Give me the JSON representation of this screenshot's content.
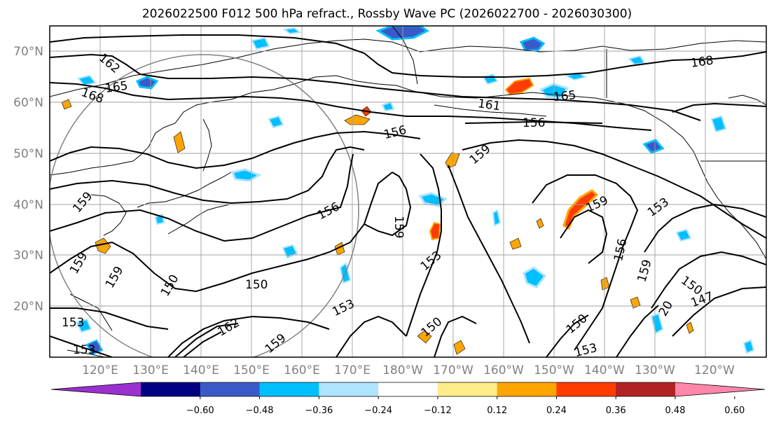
{
  "title": "2026022500 F012 500 hPa refract., Rossby Wave PC (2026022700 - 2026030300)",
  "map": {
    "lat_labels": [
      "70°N",
      "60°N",
      "50°N",
      "40°N",
      "30°N",
      "20°N"
    ],
    "lon_labels": [
      "120°E",
      "130°E",
      "140°E",
      "150°E",
      "160°E",
      "170°E",
      "180°W",
      "170°W",
      "160°W",
      "150°W",
      "140°W",
      "130°W",
      "120°W"
    ],
    "contour_labels": [
      "162",
      "165",
      "168",
      "161",
      "165",
      "156",
      "156",
      "159",
      "156",
      "159",
      "159",
      "153",
      "150",
      "150",
      "153",
      "159",
      "159",
      "153",
      "156",
      "153",
      "159",
      "150",
      "147",
      "150",
      "162",
      "159",
      "153",
      "150",
      "153",
      "168",
      "159",
      "20"
    ]
  },
  "colorbar": {
    "colors": [
      "#9b30d0",
      "#000080",
      "#3a5ac8",
      "#00bfff",
      "#aee4ff",
      "#ffffff",
      "#ffec8a",
      "#ffa500",
      "#ff3c00",
      "#b22222",
      "#ff88aa"
    ],
    "tick_labels": [
      "−0.60",
      "−0.48",
      "−0.36",
      "−0.24",
      "−0.12",
      "0.12",
      "0.24",
      "0.36",
      "0.48",
      "0.60"
    ]
  }
}
